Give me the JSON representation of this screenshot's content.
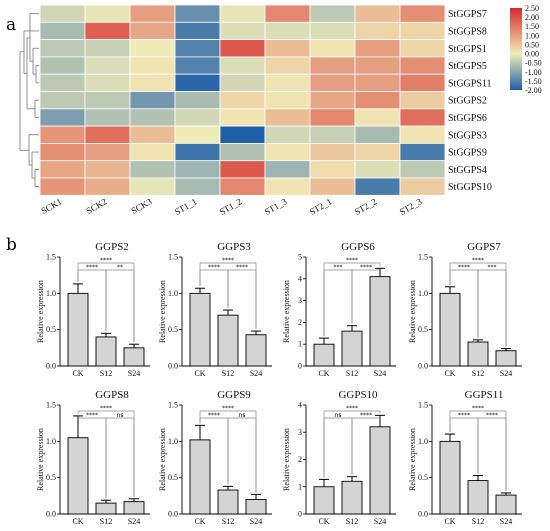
{
  "panel_labels": {
    "a": "a",
    "b": "b"
  },
  "chart_data": [
    {
      "type": "heatmap",
      "title": "",
      "columns": [
        "SCK1",
        "SCK2",
        "SCK3",
        "ST1_1",
        "ST1_2",
        "ST1_3",
        "ST2_1",
        "ST2_2",
        "ST2_3"
      ],
      "rows": [
        "StGGPS7",
        "StGGPS8",
        "StGGPS1",
        "StGGPS5",
        "StGGPS11",
        "StGGPS2",
        "StGGPS6",
        "StGGPS3",
        "StGGPS9",
        "StGGPS4",
        "StGGPS10"
      ],
      "values": [
        [
          -0.3,
          -0.1,
          1.0,
          -1.3,
          -0.1,
          1.3,
          -0.5,
          0.6,
          1.2
        ],
        [
          -0.7,
          1.8,
          0.9,
          -1.6,
          -0.2,
          -0.2,
          -0.2,
          0.3,
          0.3
        ],
        [
          -0.5,
          -0.4,
          0.0,
          -1.5,
          1.9,
          0.6,
          0.1,
          1.0,
          0.3
        ],
        [
          -0.6,
          -0.2,
          0.1,
          -1.5,
          -0.2,
          0.3,
          1.0,
          1.0,
          1.2
        ],
        [
          -0.5,
          -0.2,
          0.1,
          -1.9,
          -0.3,
          0.1,
          1.0,
          1.0,
          1.4
        ],
        [
          -0.5,
          -0.5,
          -1.2,
          -0.7,
          0.3,
          0.1,
          0.9,
          1.2,
          0.4
        ],
        [
          -1.1,
          -0.6,
          -0.6,
          -0.3,
          0.1,
          0.6,
          1.3,
          0.1,
          1.6
        ],
        [
          1.1,
          1.6,
          0.6,
          0.0,
          -2.0,
          -0.3,
          -0.4,
          -0.7,
          0.1
        ],
        [
          1.2,
          1.0,
          0.1,
          -1.7,
          -0.6,
          0.1,
          0.5,
          0.3,
          -1.6
        ],
        [
          0.9,
          0.7,
          -0.6,
          -0.8,
          1.9,
          -0.8,
          0.2,
          -0.2,
          -0.5
        ],
        [
          1.1,
          0.8,
          -0.1,
          -0.7,
          1.3,
          0.1,
          0.6,
          -1.6,
          0.4
        ]
      ],
      "colorbar": {
        "range": [
          -2.0,
          2.5
        ],
        "ticks": [
          "2.50",
          "2.00",
          "1.50",
          "1.00",
          "0.50",
          "0.00",
          "-0.50",
          "-1.00",
          "-1.50",
          "-2.00"
        ],
        "colors": {
          "low": "#1f5fa8",
          "mid": "#f0ecb8",
          "high": "#d7292b"
        }
      },
      "dendrogram": "row clustering"
    },
    {
      "type": "bar",
      "panels": [
        {
          "title": "GGPS2",
          "ylabel": "Relative expression",
          "categories": [
            "CK",
            "S12",
            "S24"
          ],
          "values": [
            1.0,
            0.4,
            0.25
          ],
          "errors": [
            0.13,
            0.05,
            0.05
          ],
          "yticks": [
            "0.0",
            "0.5",
            "1.0",
            "1.5"
          ],
          "ylim": [
            0,
            1.5
          ],
          "significance": [
            {
              "pair": [
                "CK",
                "S12"
              ],
              "level": 0,
              "label": "****"
            },
            {
              "pair": [
                "S12",
                "S24"
              ],
              "level": 0,
              "label": "**"
            },
            {
              "pair": [
                "CK",
                "S24"
              ],
              "level": 1,
              "label": "****"
            }
          ]
        },
        {
          "title": "GGPS3",
          "ylabel": "Relative expression",
          "categories": [
            "CK",
            "S12",
            "S24"
          ],
          "values": [
            1.0,
            0.7,
            0.43
          ],
          "errors": [
            0.07,
            0.07,
            0.05
          ],
          "yticks": [
            "0.0",
            "0.5",
            "1.0",
            "1.5"
          ],
          "ylim": [
            0,
            1.5
          ],
          "significance": [
            {
              "pair": [
                "CK",
                "S12"
              ],
              "level": 0,
              "label": "****"
            },
            {
              "pair": [
                "S12",
                "S24"
              ],
              "level": 0,
              "label": "****"
            },
            {
              "pair": [
                "CK",
                "S24"
              ],
              "level": 1,
              "label": "****"
            }
          ]
        },
        {
          "title": "GGPS6",
          "ylabel": "Relative expression",
          "categories": [
            "CK",
            "S12",
            "S24"
          ],
          "values": [
            1.0,
            1.6,
            4.1
          ],
          "errors": [
            0.28,
            0.25,
            0.38
          ],
          "yticks": [
            "0",
            "1",
            "2",
            "3",
            "4",
            "5"
          ],
          "ylim": [
            0,
            5
          ],
          "significance": [
            {
              "pair": [
                "CK",
                "S12"
              ],
              "level": 0,
              "label": "***"
            },
            {
              "pair": [
                "S12",
                "S24"
              ],
              "level": 0,
              "label": "****"
            },
            {
              "pair": [
                "CK",
                "S24"
              ],
              "level": 1,
              "label": "****"
            }
          ]
        },
        {
          "title": "GGPS7",
          "ylabel": "Relative expression",
          "categories": [
            "CK",
            "S12",
            "S24"
          ],
          "values": [
            1.0,
            0.33,
            0.21
          ],
          "errors": [
            0.09,
            0.03,
            0.03
          ],
          "yticks": [
            "0.0",
            "0.5",
            "1.0",
            "1.5"
          ],
          "ylim": [
            0,
            1.5
          ],
          "significance": [
            {
              "pair": [
                "CK",
                "S12"
              ],
              "level": 0,
              "label": "****"
            },
            {
              "pair": [
                "S12",
                "S24"
              ],
              "level": 0,
              "label": "***"
            },
            {
              "pair": [
                "CK",
                "S24"
              ],
              "level": 1,
              "label": "****"
            }
          ]
        },
        {
          "title": "GGPS8",
          "ylabel": "Relative expression",
          "categories": [
            "CK",
            "S12",
            "S24"
          ],
          "values": [
            1.05,
            0.15,
            0.17
          ],
          "errors": [
            0.3,
            0.04,
            0.04
          ],
          "yticks": [
            "0.0",
            "0.5",
            "1.0",
            "1.5"
          ],
          "ylim": [
            0,
            1.5
          ],
          "significance": [
            {
              "pair": [
                "CK",
                "S12"
              ],
              "level": 0,
              "label": "****"
            },
            {
              "pair": [
                "S12",
                "S24"
              ],
              "level": 0,
              "label": "ns"
            },
            {
              "pair": [
                "CK",
                "S24"
              ],
              "level": 1,
              "label": "****"
            }
          ]
        },
        {
          "title": "GGPS9",
          "ylabel": "Relative expression",
          "categories": [
            "CK",
            "S12",
            "S24"
          ],
          "values": [
            1.02,
            0.33,
            0.2
          ],
          "errors": [
            0.2,
            0.05,
            0.07
          ],
          "yticks": [
            "0.0",
            "0.5",
            "1.0",
            "1.5"
          ],
          "ylim": [
            0,
            1.5
          ],
          "significance": [
            {
              "pair": [
                "CK",
                "S12"
              ],
              "level": 0,
              "label": "****"
            },
            {
              "pair": [
                "S12",
                "S24"
              ],
              "level": 0,
              "label": "ns"
            },
            {
              "pair": [
                "CK",
                "S24"
              ],
              "level": 1,
              "label": "****"
            }
          ]
        },
        {
          "title": "GGPS10",
          "ylabel": "Relative expression",
          "categories": [
            "CK",
            "S12",
            "S24"
          ],
          "values": [
            1.0,
            1.2,
            3.2
          ],
          "errors": [
            0.27,
            0.17,
            0.42
          ],
          "yticks": [
            "0",
            "1",
            "2",
            "3",
            "4"
          ],
          "ylim": [
            0,
            4
          ],
          "significance": [
            {
              "pair": [
                "CK",
                "S12"
              ],
              "level": 0,
              "label": "ns"
            },
            {
              "pair": [
                "S12",
                "S24"
              ],
              "level": 0,
              "label": "****"
            },
            {
              "pair": [
                "CK",
                "S24"
              ],
              "level": 1,
              "label": "****"
            }
          ]
        },
        {
          "title": "GGPS11",
          "ylabel": "Relative expression",
          "categories": [
            "CK",
            "S12",
            "S24"
          ],
          "values": [
            1.0,
            0.46,
            0.26
          ],
          "errors": [
            0.1,
            0.07,
            0.03
          ],
          "yticks": [
            "0.0",
            "0.5",
            "1.0",
            "1.5"
          ],
          "ylim": [
            0,
            1.5
          ],
          "significance": [
            {
              "pair": [
                "CK",
                "S12"
              ],
              "level": 0,
              "label": "****"
            },
            {
              "pair": [
                "S12",
                "S24"
              ],
              "level": 0,
              "label": "****"
            },
            {
              "pair": [
                "CK",
                "S24"
              ],
              "level": 1,
              "label": "****"
            }
          ]
        }
      ]
    }
  ]
}
